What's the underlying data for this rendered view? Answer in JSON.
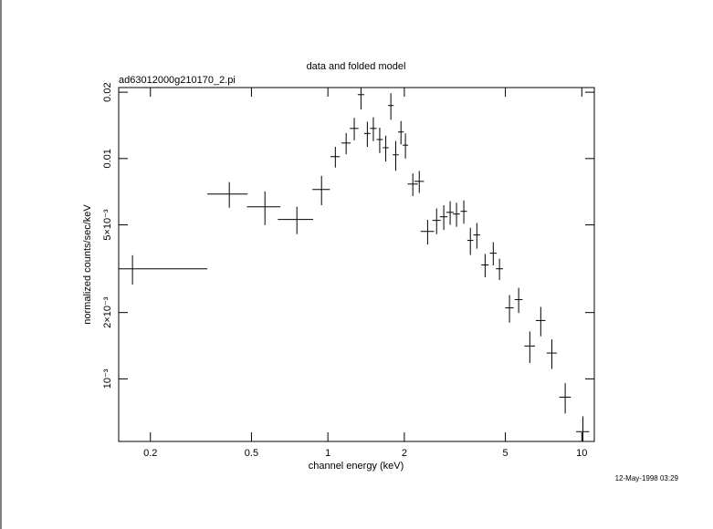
{
  "chart_data": {
    "type": "errorbar",
    "title": "data and folded model",
    "subtitle": "ad63012000g210170_2.pi",
    "x_label": "channel energy (keV)",
    "y_label": "normalized counts/sec/keV",
    "annotation": "12-May-1998 03:29",
    "log_x": true,
    "log_y": true,
    "color": "#000000",
    "xlim": [
      0.15,
      11.2
    ],
    "ylim": [
      0.00052,
      0.021
    ],
    "xticks": [
      0.2,
      0.5,
      1,
      2,
      5,
      10
    ],
    "yticks": [
      {
        "value": 0.02,
        "label": "0.02"
      },
      {
        "value": 0.01,
        "label": "0.01"
      },
      {
        "value": 0.005,
        "label": "5×10⁻³"
      },
      {
        "value": 0.002,
        "label": "2×10⁻³"
      },
      {
        "value": 0.001,
        "label": "10⁻³"
      }
    ],
    "x": [
      0.17,
      0.409,
      0.565,
      0.755,
      0.944,
      1.07,
      1.18,
      1.27,
      1.35,
      1.43,
      1.51,
      1.6,
      1.69,
      1.77,
      1.85,
      1.94,
      2.02,
      2.16,
      2.29,
      2.47,
      2.68,
      2.86,
      3.03,
      3.21,
      3.43,
      3.64,
      3.86,
      4.16,
      4.48,
      4.74,
      5.19,
      5.64,
      6.24,
      6.89,
      7.62,
      8.6,
      10.1
    ],
    "xerr": [
      0.165,
      0.074,
      0.085,
      0.12,
      0.075,
      0.045,
      0.05,
      0.05,
      0.04,
      0.04,
      0.045,
      0.045,
      0.045,
      0.045,
      0.05,
      0.05,
      0.05,
      0.1,
      0.1,
      0.15,
      0.1,
      0.1,
      0.1,
      0.1,
      0.1,
      0.1,
      0.12,
      0.14,
      0.14,
      0.15,
      0.2,
      0.2,
      0.3,
      0.3,
      0.35,
      0.45,
      0.6
    ],
    "values": [
      0.00316,
      0.0069,
      0.00604,
      0.00529,
      0.00724,
      0.0102,
      0.01176,
      0.0137,
      0.0195,
      0.013,
      0.0137,
      0.0122,
      0.0112,
      0.0174,
      0.0104,
      0.0132,
      0.0115,
      0.00766,
      0.00788,
      0.00467,
      0.00524,
      0.00544,
      0.0057,
      0.0056,
      0.00576,
      0.00425,
      0.0045,
      0.00329,
      0.00372,
      0.00316,
      0.0021,
      0.00229,
      0.00141,
      0.00184,
      0.00131,
      0.000826,
      0.000576
    ],
    "yerr": [
      0.00048,
      0.00092,
      0.00105,
      0.00075,
      0.0011,
      0.0011,
      0.0013,
      0.0016,
      0.0028,
      0.0017,
      0.0017,
      0.0016,
      0.0015,
      0.0024,
      0.0016,
      0.0016,
      0.0015,
      0.0009,
      0.0009,
      0.0006,
      0.0007,
      0.0007,
      0.0007,
      0.0007,
      0.0007,
      0.0006,
      0.0006,
      0.0004,
      0.00045,
      0.00035,
      0.0003,
      0.0003,
      0.00023,
      0.00028,
      0.0002,
      0.00013,
      0.0001
    ]
  }
}
